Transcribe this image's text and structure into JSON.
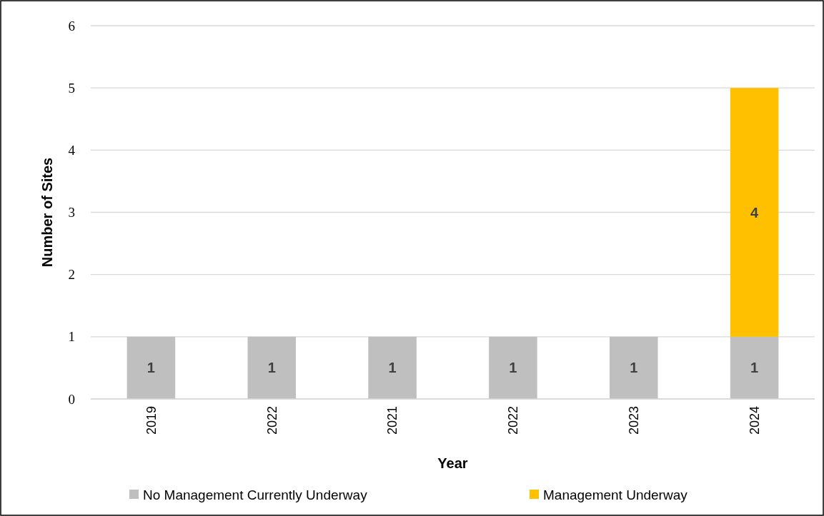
{
  "chart_data": {
    "type": "bar",
    "stacked": true,
    "xlabel": "Year",
    "ylabel": "Number of Sites",
    "categories": [
      "2019",
      "2022",
      "2021",
      "2022",
      "2023",
      "2024"
    ],
    "series": [
      {
        "name": "No Management Currently Underway",
        "color": "#bfbfbf",
        "values": [
          1,
          1,
          1,
          1,
          1,
          1
        ]
      },
      {
        "name": "Management Underway",
        "color": "#ffc000",
        "values": [
          null,
          null,
          null,
          null,
          null,
          4
        ]
      }
    ],
    "ylim": [
      0,
      6
    ],
    "yticks": [
      0,
      1,
      2,
      3,
      4,
      5,
      6
    ],
    "grid": "y",
    "legend": "bottom",
    "data_labels": true
  }
}
